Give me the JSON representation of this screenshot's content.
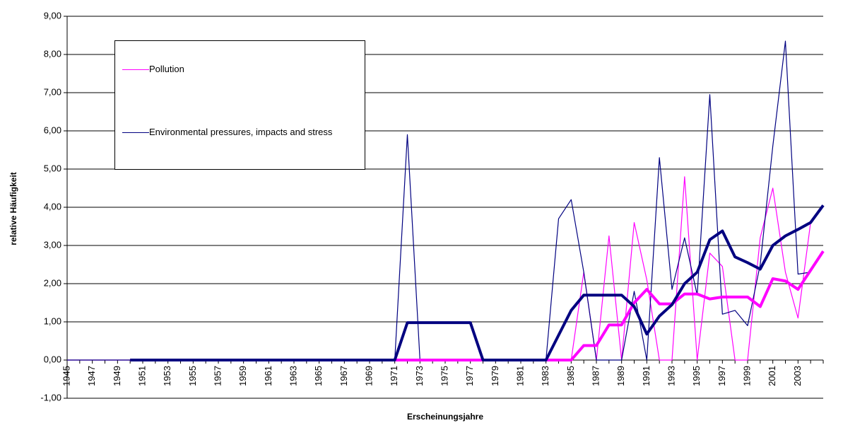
{
  "chart_data": {
    "type": "line",
    "y_label": "relative Häufigkeit",
    "x_label": "Erscheinungsjahre",
    "categories": [
      "1945",
      null,
      "1947",
      null,
      "1949",
      null,
      "1951",
      null,
      "1953",
      null,
      "1955",
      null,
      "1957",
      null,
      "1959",
      null,
      "1961",
      null,
      "1963",
      null,
      "1965",
      null,
      "1967",
      null,
      "1969",
      null,
      "1971",
      null,
      "1973",
      null,
      "1975",
      null,
      "1977",
      null,
      "1979",
      null,
      "1981",
      null,
      "1983",
      null,
      "1985",
      null,
      "1987",
      null,
      "1989",
      null,
      "1991",
      null,
      "1993",
      null,
      "1995",
      null,
      "1997",
      null,
      "1999",
      null,
      "2001",
      null,
      "2003",
      null,
      null
    ],
    "series": [
      {
        "name": "Pollution",
        "color": "#ff00ff",
        "width": 1.2,
        "values": [
          0,
          0,
          0,
          0,
          0,
          0,
          0,
          0,
          0,
          0,
          0,
          0,
          0,
          0,
          0,
          0,
          0,
          0,
          0,
          0,
          0,
          0,
          0,
          0,
          0,
          0,
          0,
          0,
          0,
          0,
          0,
          0,
          0,
          0,
          0,
          0,
          0,
          0,
          0,
          0,
          0,
          2.3,
          0,
          3.25,
          0,
          3.6,
          2.1,
          0,
          0,
          4.8,
          0,
          2.8,
          2.45,
          0,
          0,
          3.2,
          4.5,
          2.3,
          1.1,
          3.6,
          null
        ]
      },
      {
        "name": "Environmental pressures, impacts and stress",
        "color": "#000080",
        "width": 1.2,
        "values": [
          0,
          0,
          0,
          0,
          0,
          0,
          0,
          0,
          0,
          0,
          0,
          0,
          0,
          0,
          0,
          0,
          0,
          0,
          0,
          0,
          0,
          0,
          0,
          0,
          0,
          0,
          0,
          5.9,
          0,
          0,
          0,
          0,
          0,
          0,
          0,
          0,
          0,
          0,
          0,
          3.7,
          4.2,
          2.3,
          0,
          0,
          0,
          1.8,
          0,
          5.3,
          1.85,
          3.2,
          1.7,
          6.95,
          1.2,
          1.3,
          0.9,
          2.5,
          5.6,
          8.35,
          2.25,
          2.3,
          null
        ]
      },
      {
        "color": "#ff00ff",
        "width": 4,
        "values": [
          null,
          null,
          null,
          null,
          null,
          0,
          0,
          0,
          0,
          0,
          0,
          0,
          0,
          0,
          0,
          0,
          0,
          0,
          0,
          0,
          0,
          0,
          0,
          0,
          0,
          0,
          0,
          0,
          0,
          0,
          0,
          0,
          0,
          0,
          0,
          0,
          0,
          0,
          0,
          0,
          0,
          0.38,
          0.38,
          0.92,
          0.92,
          1.5,
          1.85,
          1.47,
          1.47,
          1.73,
          1.73,
          1.6,
          1.65,
          1.65,
          1.65,
          1.4,
          2.13,
          2.07,
          1.85,
          2.35,
          2.85
        ]
      },
      {
        "color": "#000080",
        "width": 4,
        "values": [
          null,
          null,
          null,
          null,
          null,
          0,
          0,
          0,
          0,
          0,
          0,
          0,
          0,
          0,
          0,
          0,
          0,
          0,
          0,
          0,
          0,
          0,
          0,
          0,
          0,
          0,
          0,
          0.98,
          0.98,
          0.98,
          0.98,
          0.98,
          0.98,
          0,
          0,
          0,
          0,
          0,
          0,
          0.65,
          1.3,
          1.7,
          1.7,
          1.7,
          1.7,
          1.4,
          0.68,
          1.15,
          1.45,
          2.0,
          2.3,
          3.15,
          3.38,
          2.7,
          2.55,
          2.38,
          3.0,
          3.25,
          3.42,
          3.6,
          4.05
        ]
      }
    ],
    "ylim": [
      -1,
      9
    ],
    "yticks": [
      {
        "value": -1,
        "label": "-1,00"
      },
      {
        "value": 0,
        "label": "0,00"
      },
      {
        "value": 1,
        "label": "1,00"
      },
      {
        "value": 2,
        "label": "2,00"
      },
      {
        "value": 3,
        "label": "3,00"
      },
      {
        "value": 4,
        "label": "4,00"
      },
      {
        "value": 5,
        "label": "5,00"
      },
      {
        "value": 6,
        "label": "6,00"
      },
      {
        "value": 7,
        "label": "7,00"
      },
      {
        "value": 8,
        "label": "8,00"
      },
      {
        "value": 9,
        "label": "9,00"
      }
    ],
    "grid": true
  }
}
